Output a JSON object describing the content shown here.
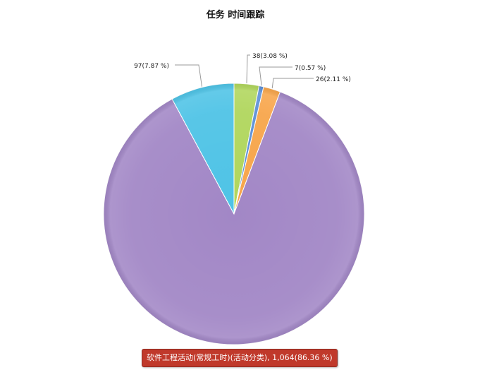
{
  "chart_data": {
    "type": "pie",
    "title": "任务 时间跟踪",
    "slices": [
      {
        "value": 38,
        "percent_label": "38(3.08 %)",
        "color": "#b0d65c"
      },
      {
        "value": 7,
        "percent_label": "7(0.57 %)",
        "color": "#5b8fd6"
      },
      {
        "value": 26,
        "percent_label": "26(2.11 %)",
        "color": "#f7a54a"
      },
      {
        "value": 1064,
        "percent_label": "1,064(86.36 %)",
        "color": "#a287c6"
      },
      {
        "value": 97,
        "percent_label": "97(7.87 %)",
        "color": "#4ec3e6"
      }
    ]
  },
  "tooltip": {
    "text": "软件工程活动(常规工时)(活动分类), 1,064(86.36 %)",
    "color": "#c0392b"
  }
}
